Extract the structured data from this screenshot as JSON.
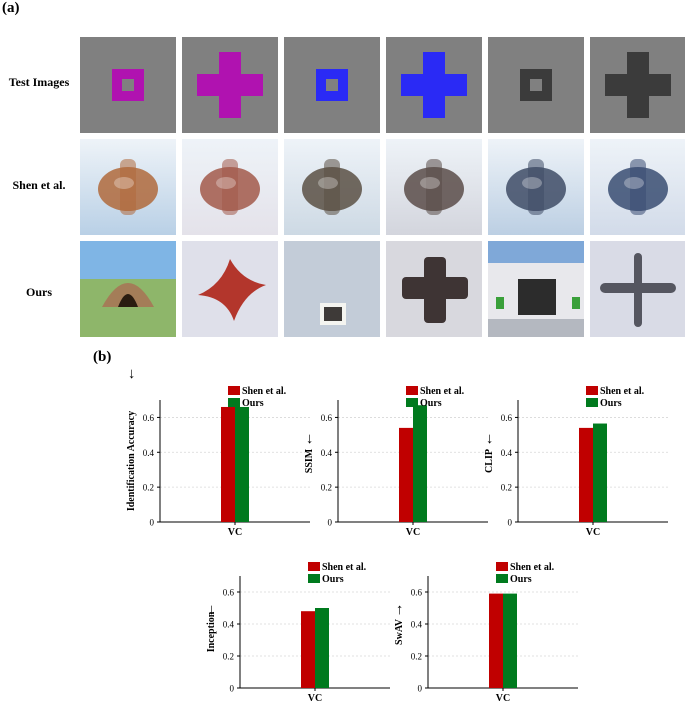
{
  "panel_a": {
    "label": "(a)",
    "rows": [
      "Test Images",
      "Shen et al.",
      "Ours"
    ],
    "test_images": [
      {
        "shape": "square",
        "color": "#b012b0"
      },
      {
        "shape": "cross",
        "color": "#b012b0"
      },
      {
        "shape": "square",
        "color": "#2a2af5"
      },
      {
        "shape": "cross",
        "color": "#2a2af5"
      },
      {
        "shape": "square",
        "color": "#3b3b3b"
      },
      {
        "shape": "cross",
        "color": "#3b3b3b"
      }
    ],
    "shen_tiles": [
      {
        "bg": "#b9d0e6",
        "object": "#b06a3c"
      },
      {
        "bg": "#e4e2ea",
        "object": "#a2594a"
      },
      {
        "bg": "#cdd9e4",
        "object": "#5b5044"
      },
      {
        "bg": "#d3d5dd",
        "object": "#5a4c49"
      },
      {
        "bg": "#bccfe3",
        "object": "#3f4c66"
      },
      {
        "bg": "#d2dbe9",
        "object": "#3a4d72"
      }
    ],
    "ours_tiles": [
      {
        "scene": "hut",
        "bg": "#8eb66a",
        "sky": "#7fb5e5",
        "object": "#a47d58"
      },
      {
        "scene": "flower",
        "bg": "#dfe0ea",
        "object": "#b3362c"
      },
      {
        "scene": "window",
        "bg": "#c3ccd8",
        "object": "#3e3a38"
      },
      {
        "scene": "cross",
        "bg": "#d8d8de",
        "object": "#3e3434"
      },
      {
        "scene": "garage",
        "bg": "#dfe4ef",
        "object": "#2c2c2c"
      },
      {
        "scene": "bar",
        "bg": "#d9dbe6",
        "object": "#555660"
      }
    ]
  },
  "panel_b": {
    "label": "(b)",
    "colors": {
      "shen": "#c00000",
      "ours": "#007a1e"
    }
  },
  "chart_data": [
    {
      "type": "bar",
      "categories": [
        "VC"
      ],
      "series": [
        {
          "name": "Shen et al.",
          "values": [
            0.66
          ]
        },
        {
          "name": "Ours",
          "values": [
            0.66
          ]
        }
      ],
      "ylabel": "Identification Accuracy",
      "ylim": [
        0,
        0.7
      ],
      "yticks": [
        "0",
        "0.2",
        "0.4",
        "0.6"
      ],
      "arrow": "←",
      "legend": "top-right"
    },
    {
      "type": "bar",
      "categories": [
        "VC"
      ],
      "series": [
        {
          "name": "Shen et al.",
          "values": [
            0.54
          ]
        },
        {
          "name": "Ours",
          "values": [
            0.67
          ]
        }
      ],
      "ylabel": "SSIM",
      "ylim": [
        0,
        0.7
      ],
      "yticks": [
        "0",
        "0.2",
        "0.4",
        "0.6"
      ],
      "arrow": "←",
      "legend": "top-right"
    },
    {
      "type": "bar",
      "categories": [
        "VC"
      ],
      "series": [
        {
          "name": "Shen et al.",
          "values": [
            0.54
          ]
        },
        {
          "name": "Ours",
          "values": [
            0.565
          ]
        }
      ],
      "ylabel": "CLIP",
      "ylim": [
        0,
        0.7
      ],
      "yticks": [
        "0",
        "0.2",
        "0.4",
        "0.6"
      ],
      "arrow": "←",
      "legend": "top-right"
    },
    {
      "type": "bar",
      "categories": [
        "VC"
      ],
      "series": [
        {
          "name": "Shen et al.",
          "values": [
            0.48
          ]
        },
        {
          "name": "Ours",
          "values": [
            0.5
          ]
        }
      ],
      "ylabel": "Inception",
      "ylim": [
        0,
        0.7
      ],
      "yticks": [
        "0",
        "0.2",
        "0.4",
        "0.6"
      ],
      "arrow": "←",
      "legend": "top-right"
    },
    {
      "type": "bar",
      "categories": [
        "VC"
      ],
      "series": [
        {
          "name": "Shen et al.",
          "values": [
            0.59
          ]
        },
        {
          "name": "Ours",
          "values": [
            0.59
          ]
        }
      ],
      "ylabel": "SwAV",
      "ylim": [
        0,
        0.7
      ],
      "yticks": [
        "0",
        "0.2",
        "0.4",
        "0.6"
      ],
      "arrow": "→",
      "legend": "top-right"
    }
  ]
}
